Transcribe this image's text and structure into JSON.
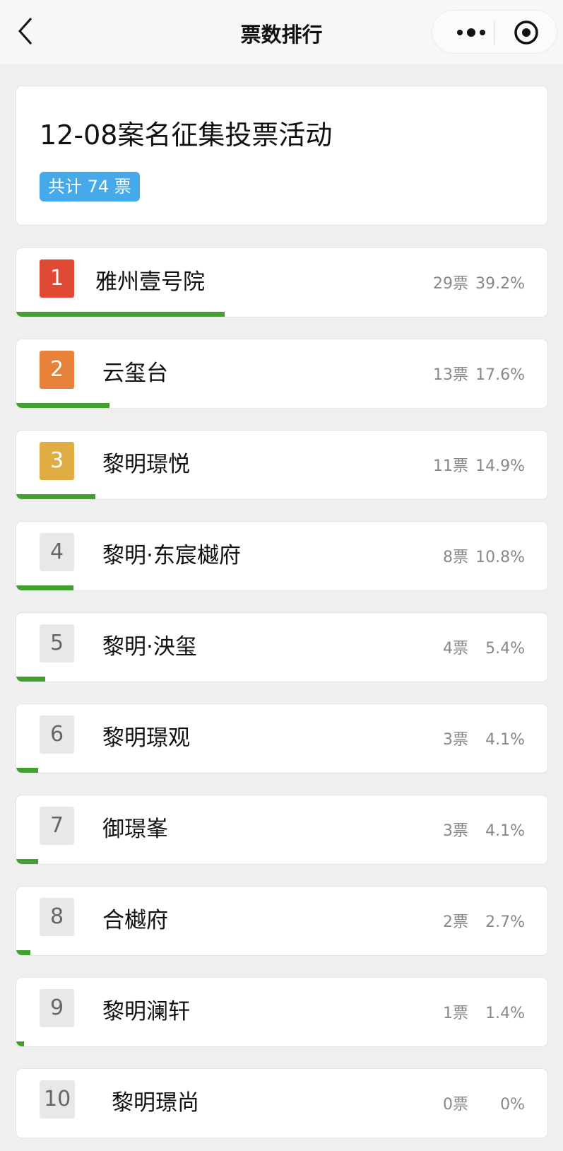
{
  "header": {
    "title": "票数排行",
    "back_icon": "chevron-left-icon",
    "more_icon": "more-dots-icon",
    "close_icon": "target-circle-icon"
  },
  "activity": {
    "title": "12-08案名征集投票活动",
    "total_label": "共计 74 票"
  },
  "colors": {
    "rank1": "#e04a35",
    "rank2": "#e8823a",
    "rank3": "#e0ad45",
    "bar": "#43a030",
    "total_badge": "#45a9ea"
  },
  "ranking": [
    {
      "rank": "1",
      "name": "雅州壹号院",
      "votes": "29票",
      "percent": "39.2%",
      "fill": 39.2
    },
    {
      "rank": "2",
      "name": "云玺台",
      "votes": "13票",
      "percent": "17.6%",
      "fill": 17.6
    },
    {
      "rank": "3",
      "name": "黎明璟悦",
      "votes": "11票",
      "percent": "14.9%",
      "fill": 14.9
    },
    {
      "rank": "4",
      "name": "黎明·东宸樾府",
      "votes": "8票",
      "percent": "10.8%",
      "fill": 10.8
    },
    {
      "rank": "5",
      "name": "黎明·泱玺",
      "votes": "4票",
      "percent": "5.4%",
      "fill": 5.4
    },
    {
      "rank": "6",
      "name": "黎明璟观",
      "votes": "3票",
      "percent": "4.1%",
      "fill": 4.1
    },
    {
      "rank": "7",
      "name": "御璟峯",
      "votes": "3票",
      "percent": "4.1%",
      "fill": 4.1
    },
    {
      "rank": "8",
      "name": "合樾府",
      "votes": "2票",
      "percent": "2.7%",
      "fill": 2.7
    },
    {
      "rank": "9",
      "name": "黎明澜轩",
      "votes": "1票",
      "percent": "1.4%",
      "fill": 1.4
    },
    {
      "rank": "10",
      "name": "黎明璟尚",
      "votes": "0票",
      "percent": "0%",
      "fill": 0
    }
  ]
}
